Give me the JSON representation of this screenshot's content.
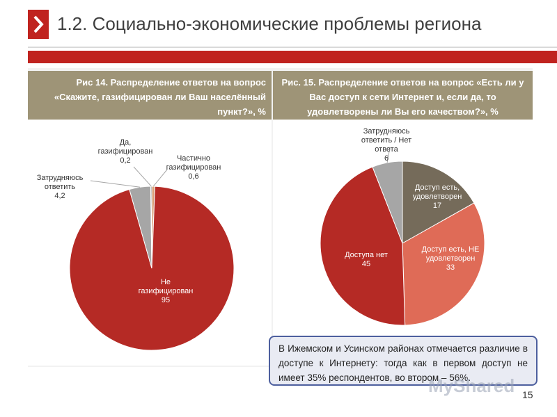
{
  "slide": {
    "title": "1.2. Социально-экономические проблемы региона",
    "page_number": "15",
    "watermark": "MyShared"
  },
  "colors": {
    "brand_red": "#c0231f",
    "caption_bg": "#9e9477",
    "note_border": "#4d5f9e"
  },
  "note": {
    "text": "В Ижемском и Усинском районах отмечается различие в доступе к Интернету: тогда как в первом доступ не имеет 35% респондентов, во втором – 56%."
  },
  "chart_data": [
    {
      "type": "pie",
      "title": "Рис 14. Распределение ответов на вопрос «Скажите, газифицирован ли Ваш населённый пункт?», %",
      "slices": [
        {
          "label": "Не газифицирован",
          "value": 95,
          "value_label": "95",
          "color": "#b52a25"
        },
        {
          "label": "Затрудняюсь ответить",
          "value": 4.2,
          "value_label": "4,2",
          "color": "#a6a6a6"
        },
        {
          "label": "Да, газифицирован",
          "value": 0.2,
          "value_label": "0,2",
          "color": "#7f7f7f"
        },
        {
          "label": "Частично газифицирован",
          "value": 0.6,
          "value_label": "0,6",
          "color": "#d9a27a"
        }
      ]
    },
    {
      "type": "pie",
      "title": "Рис. 15. Распределение ответов на вопрос «Есть ли у Вас доступ к сети Интернет и, если да, то удовлетворены ли Вы его качеством?», %",
      "slices": [
        {
          "label": "Доступ есть, удовлетворен",
          "value": 17,
          "value_label": "17",
          "color": "#756b5a"
        },
        {
          "label": "Доступ есть, НЕ удовлетворен",
          "value": 33,
          "value_label": "33",
          "color": "#df6b57"
        },
        {
          "label": "Доступа нет",
          "value": 45,
          "value_label": "45",
          "color": "#b52a25"
        },
        {
          "label": "Затрудняюсь ответить / Нет ответа",
          "value": 6,
          "value_label": "6",
          "color": "#a6a6a6"
        }
      ]
    }
  ]
}
